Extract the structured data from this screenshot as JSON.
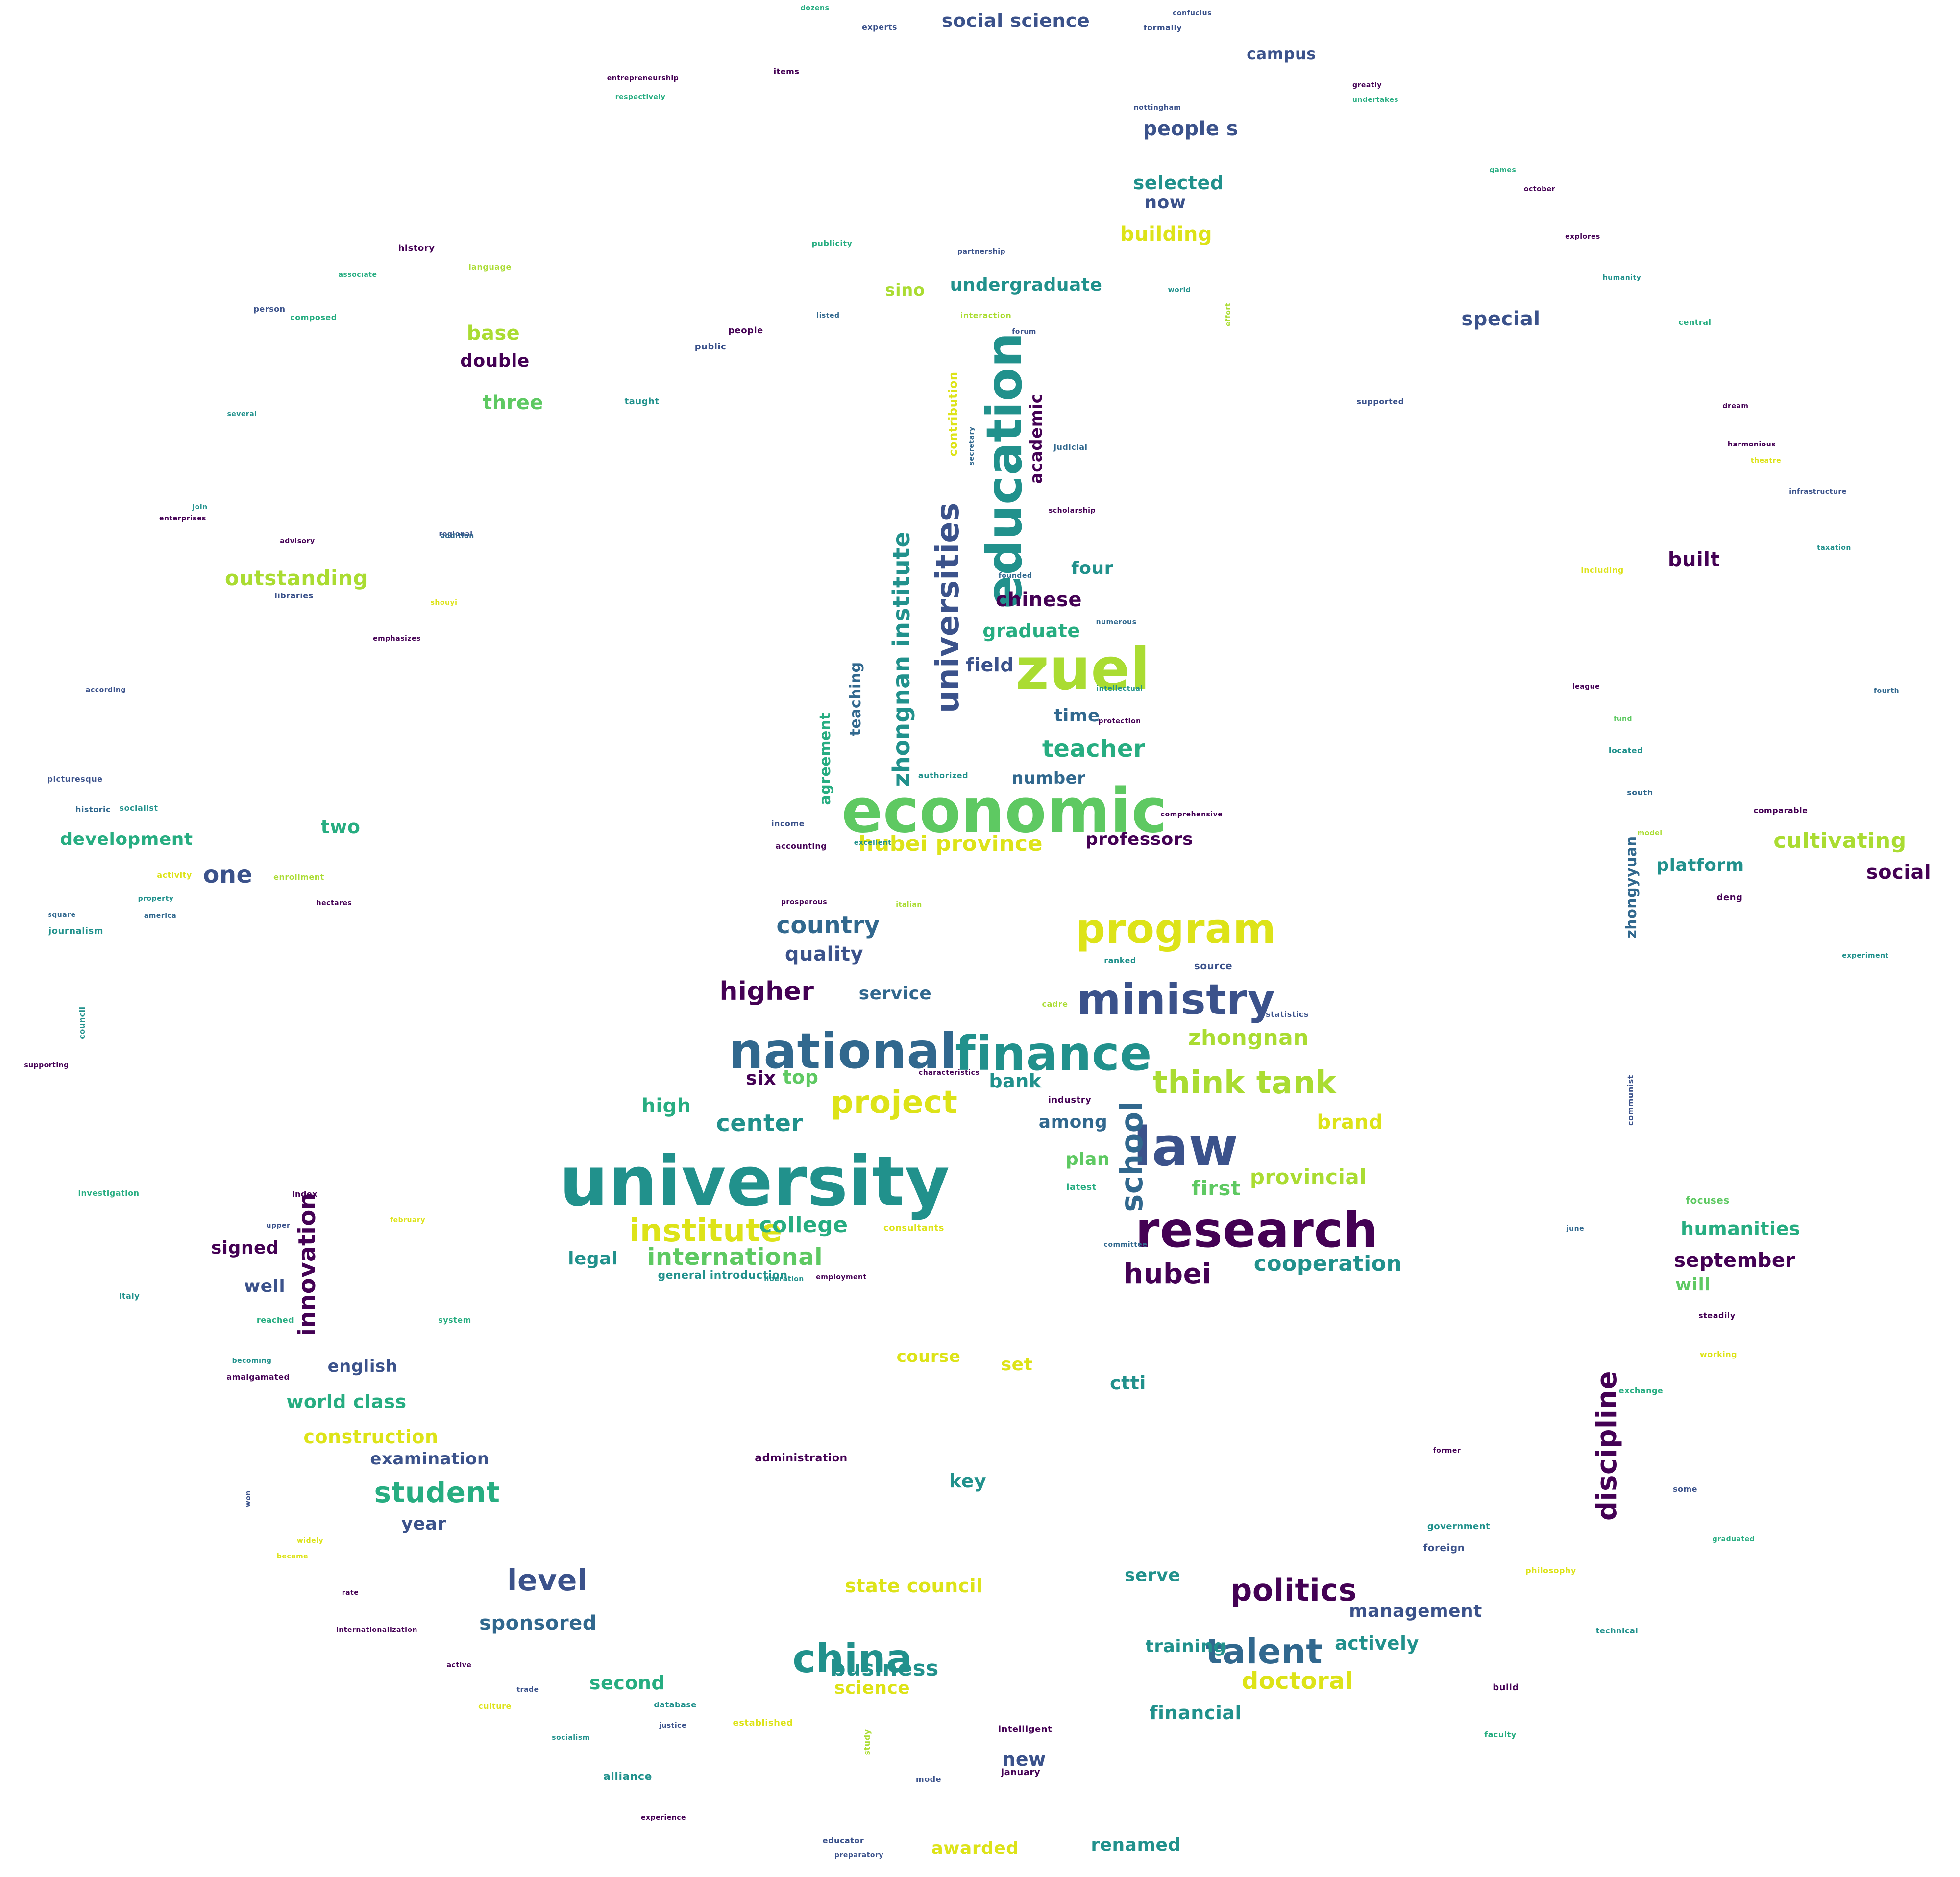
{
  "palette": {
    "c0": "#440154",
    "c1": "#3b528b",
    "c2": "#21918c",
    "c3": "#27ad81",
    "c4": "#5ec962",
    "c5": "#aadc32",
    "c6": "#dde318",
    "c7": "#31688e"
  },
  "words": [
    {
      "t": "university",
      "c": "c2"
    },
    {
      "t": "economic",
      "c": "c4"
    },
    {
      "t": "national",
      "c": "c7"
    },
    {
      "t": "finance",
      "c": "c2"
    },
    {
      "t": "research",
      "c": "c0"
    },
    {
      "t": "law",
      "c": "c1"
    },
    {
      "t": "program",
      "c": "c6"
    },
    {
      "t": "ministry",
      "c": "c1"
    },
    {
      "t": "zuel",
      "c": "c5"
    },
    {
      "t": "education",
      "c": "c2"
    },
    {
      "t": "china",
      "c": "c2"
    },
    {
      "t": "institute",
      "c": "c6"
    },
    {
      "t": "think tank",
      "c": "c5"
    },
    {
      "t": "project",
      "c": "c6"
    },
    {
      "t": "talent",
      "c": "c7"
    },
    {
      "t": "politics",
      "c": "c0"
    },
    {
      "t": "student",
      "c": "c3"
    },
    {
      "t": "zhongnan institute",
      "c": "c2"
    },
    {
      "t": "universities",
      "c": "c1"
    },
    {
      "t": "hubei province",
      "c": "c6"
    },
    {
      "t": "discipline",
      "c": "c0"
    },
    {
      "t": "innovation",
      "c": "c0"
    },
    {
      "t": "international",
      "c": "c4"
    },
    {
      "t": "hubei",
      "c": "c0"
    },
    {
      "t": "school",
      "c": "c7"
    },
    {
      "t": "college",
      "c": "c3"
    },
    {
      "t": "center",
      "c": "c2"
    },
    {
      "t": "cooperation",
      "c": "c2"
    },
    {
      "t": "higher",
      "c": "c0"
    },
    {
      "t": "country",
      "c": "c7"
    },
    {
      "t": "level",
      "c": "c1"
    },
    {
      "t": "doctoral",
      "c": "c6"
    },
    {
      "t": "business",
      "c": "c2"
    },
    {
      "t": "zhongnan",
      "c": "c5"
    },
    {
      "t": "teacher",
      "c": "c3"
    },
    {
      "t": "academic",
      "c": "c0"
    },
    {
      "t": "cultivating",
      "c": "c5"
    },
    {
      "t": "state council",
      "c": "c6"
    },
    {
      "t": "science",
      "c": "c6"
    },
    {
      "t": "sponsored",
      "c": "c7"
    },
    {
      "t": "provincial",
      "c": "c5"
    },
    {
      "t": "social science",
      "c": "c1"
    },
    {
      "t": "management",
      "c": "c1"
    },
    {
      "t": "undergraduate",
      "c": "c2"
    },
    {
      "t": "building",
      "c": "c6"
    },
    {
      "t": "development",
      "c": "c3"
    },
    {
      "t": "outstanding",
      "c": "c5"
    },
    {
      "t": "graduate",
      "c": "c3"
    },
    {
      "t": "people s",
      "c": "c1"
    },
    {
      "t": "quality",
      "c": "c1"
    },
    {
      "t": "service",
      "c": "c7"
    },
    {
      "t": "high",
      "c": "c3"
    },
    {
      "t": "brand",
      "c": "c6"
    },
    {
      "t": "among",
      "c": "c7"
    },
    {
      "t": "first",
      "c": "c4"
    },
    {
      "t": "humanities",
      "c": "c3"
    },
    {
      "t": "september",
      "c": "c0"
    },
    {
      "t": "platform",
      "c": "c2"
    },
    {
      "t": "social",
      "c": "c0"
    },
    {
      "t": "selected",
      "c": "c2"
    },
    {
      "t": "chinese",
      "c": "c0"
    },
    {
      "t": "construction",
      "c": "c6"
    },
    {
      "t": "examination",
      "c": "c1"
    },
    {
      "t": "world class",
      "c": "c3"
    },
    {
      "t": "financial",
      "c": "c2"
    },
    {
      "t": "training",
      "c": "c2"
    },
    {
      "t": "actively",
      "c": "c2"
    },
    {
      "t": "second",
      "c": "c3"
    },
    {
      "t": "special",
      "c": "c1"
    },
    {
      "t": "base",
      "c": "c5"
    },
    {
      "t": "double",
      "c": "c0"
    },
    {
      "t": "three",
      "c": "c4"
    },
    {
      "t": "one",
      "c": "c1"
    },
    {
      "t": "two",
      "c": "c3"
    },
    {
      "t": "professors",
      "c": "c0"
    },
    {
      "t": "number",
      "c": "c7"
    },
    {
      "t": "field",
      "c": "c1"
    },
    {
      "t": "time",
      "c": "c7"
    },
    {
      "t": "four",
      "c": "c2"
    },
    {
      "t": "top",
      "c": "c4"
    },
    {
      "t": "six",
      "c": "c0"
    },
    {
      "t": "bank",
      "c": "c2"
    },
    {
      "t": "plan",
      "c": "c4"
    },
    {
      "t": "legal",
      "c": "c2"
    },
    {
      "t": "signed",
      "c": "c0"
    },
    {
      "t": "well",
      "c": "c1"
    },
    {
      "t": "english",
      "c": "c1"
    },
    {
      "t": "year",
      "c": "c1"
    },
    {
      "t": "course",
      "c": "c6"
    },
    {
      "t": "set",
      "c": "c6"
    },
    {
      "t": "ctti",
      "c": "c2"
    },
    {
      "t": "key",
      "c": "c2"
    },
    {
      "t": "serve",
      "c": "c2"
    },
    {
      "t": "new",
      "c": "c1"
    },
    {
      "t": "awarded",
      "c": "c6"
    },
    {
      "t": "renamed",
      "c": "c2"
    },
    {
      "t": "campus",
      "c": "c1"
    },
    {
      "t": "now",
      "c": "c1"
    },
    {
      "t": "sino",
      "c": "c5"
    },
    {
      "t": "built",
      "c": "c0"
    },
    {
      "t": "will",
      "c": "c4"
    },
    {
      "t": "contribution",
      "c": "c6"
    },
    {
      "t": "teaching",
      "c": "c7"
    },
    {
      "t": "agreement",
      "c": "c3"
    },
    {
      "t": "zhongyyuan",
      "c": "c7"
    },
    {
      "t": "general introduction",
      "c": "c2"
    },
    {
      "t": "alliance",
      "c": "c2"
    },
    {
      "t": "administration",
      "c": "c0"
    },
    {
      "t": "journalism",
      "c": "c2"
    },
    {
      "t": "history",
      "c": "c0"
    },
    {
      "t": "person",
      "c": "c1"
    },
    {
      "t": "language",
      "c": "c5"
    },
    {
      "t": "items",
      "c": "c0"
    },
    {
      "t": "experts",
      "c": "c1"
    },
    {
      "t": "formally",
      "c": "c1"
    },
    {
      "t": "dozens",
      "c": "c3"
    },
    {
      "t": "confucius",
      "c": "c1"
    },
    {
      "t": "nottingham",
      "c": "c1"
    },
    {
      "t": "greatly",
      "c": "c0"
    },
    {
      "t": "undertakes",
      "c": "c3"
    },
    {
      "t": "entrepreneurship",
      "c": "c0"
    },
    {
      "t": "respectively",
      "c": "c3"
    },
    {
      "t": "october",
      "c": "c0"
    },
    {
      "t": "games",
      "c": "c3"
    },
    {
      "t": "explores",
      "c": "c0"
    },
    {
      "t": "humanity",
      "c": "c2"
    },
    {
      "t": "central",
      "c": "c3"
    },
    {
      "t": "supported",
      "c": "c1"
    },
    {
      "t": "dream",
      "c": "c0"
    },
    {
      "t": "harmonious",
      "c": "c0"
    },
    {
      "t": "theatre",
      "c": "c6"
    },
    {
      "t": "infrastructure",
      "c": "c1"
    },
    {
      "t": "taxation",
      "c": "c2"
    },
    {
      "t": "including",
      "c": "c6"
    },
    {
      "t": "fourth",
      "c": "c7"
    },
    {
      "t": "league",
      "c": "c0"
    },
    {
      "t": "fund",
      "c": "c4"
    },
    {
      "t": "located",
      "c": "c2"
    },
    {
      "t": "south",
      "c": "c7"
    },
    {
      "t": "comparable",
      "c": "c0"
    },
    {
      "t": "model",
      "c": "c5"
    },
    {
      "t": "deng",
      "c": "c0"
    },
    {
      "t": "experiment",
      "c": "c2"
    },
    {
      "t": "communist",
      "c": "c1"
    },
    {
      "t": "focuses",
      "c": "c4"
    },
    {
      "t": "june",
      "c": "c7"
    },
    {
      "t": "steadily",
      "c": "c0"
    },
    {
      "t": "working",
      "c": "c6"
    },
    {
      "t": "exchange",
      "c": "c3"
    },
    {
      "t": "former",
      "c": "c0"
    },
    {
      "t": "some",
      "c": "c1"
    },
    {
      "t": "graduated",
      "c": "c3"
    },
    {
      "t": "government",
      "c": "c2"
    },
    {
      "t": "foreign",
      "c": "c1"
    },
    {
      "t": "philosophy",
      "c": "c6"
    },
    {
      "t": "technical",
      "c": "c2"
    },
    {
      "t": "build",
      "c": "c0"
    },
    {
      "t": "faculty",
      "c": "c3"
    },
    {
      "t": "intelligent",
      "c": "c0"
    },
    {
      "t": "january",
      "c": "c0"
    },
    {
      "t": "mode",
      "c": "c1"
    },
    {
      "t": "study",
      "c": "c5"
    },
    {
      "t": "established",
      "c": "c6"
    },
    {
      "t": "database",
      "c": "c2"
    },
    {
      "t": "justice",
      "c": "c1"
    },
    {
      "t": "experience",
      "c": "c0"
    },
    {
      "t": "preparatory",
      "c": "c1"
    },
    {
      "t": "educator",
      "c": "c1"
    },
    {
      "t": "socialism",
      "c": "c2"
    },
    {
      "t": "culture",
      "c": "c6"
    },
    {
      "t": "trade",
      "c": "c1"
    },
    {
      "t": "active",
      "c": "c0"
    },
    {
      "t": "internationalization",
      "c": "c0"
    },
    {
      "t": "rate",
      "c": "c0"
    },
    {
      "t": "became",
      "c": "c6"
    },
    {
      "t": "widely",
      "c": "c6"
    },
    {
      "t": "won",
      "c": "c1"
    },
    {
      "t": "amalgamated",
      "c": "c0"
    },
    {
      "t": "becoming",
      "c": "c2"
    },
    {
      "t": "reached",
      "c": "c3"
    },
    {
      "t": "italy",
      "c": "c2"
    },
    {
      "t": "investigation",
      "c": "c3"
    },
    {
      "t": "index",
      "c": "c0"
    },
    {
      "t": "upper",
      "c": "c1"
    },
    {
      "t": "february",
      "c": "c6"
    },
    {
      "t": "system",
      "c": "c3"
    },
    {
      "t": "supporting",
      "c": "c0"
    },
    {
      "t": "council",
      "c": "c2"
    },
    {
      "t": "according",
      "c": "c1"
    },
    {
      "t": "picturesque",
      "c": "c1"
    },
    {
      "t": "historic",
      "c": "c7"
    },
    {
      "t": "socialist",
      "c": "c2"
    },
    {
      "t": "activity",
      "c": "c6"
    },
    {
      "t": "enrollment",
      "c": "c5"
    },
    {
      "t": "hectares",
      "c": "c0"
    },
    {
      "t": "america",
      "c": "c7"
    },
    {
      "t": "property",
      "c": "c2"
    },
    {
      "t": "square",
      "c": "c7"
    },
    {
      "t": "libraries",
      "c": "c1"
    },
    {
      "t": "emphasizes",
      "c": "c0"
    },
    {
      "t": "shouyi",
      "c": "c6"
    },
    {
      "t": "regional",
      "c": "c1"
    },
    {
      "t": "advisory",
      "c": "c0"
    },
    {
      "t": "addition",
      "c": "c7"
    },
    {
      "t": "enterprises",
      "c": "c0"
    },
    {
      "t": "join",
      "c": "c2"
    },
    {
      "t": "several",
      "c": "c2"
    },
    {
      "t": "composed",
      "c": "c3"
    },
    {
      "t": "associate",
      "c": "c3"
    },
    {
      "t": "taught",
      "c": "c2"
    },
    {
      "t": "people",
      "c": "c0"
    },
    {
      "t": "public",
      "c": "c1"
    },
    {
      "t": "listed",
      "c": "c7"
    },
    {
      "t": "publicity",
      "c": "c3"
    },
    {
      "t": "partnership",
      "c": "c1"
    },
    {
      "t": "world",
      "c": "c2"
    },
    {
      "t": "effort",
      "c": "c5"
    },
    {
      "t": "interaction",
      "c": "c5"
    },
    {
      "t": "forum",
      "c": "c1"
    },
    {
      "t": "secretary",
      "c": "c7"
    },
    {
      "t": "judicial",
      "c": "c7"
    },
    {
      "t": "scholarship",
      "c": "c0"
    },
    {
      "t": "founded",
      "c": "c7"
    },
    {
      "t": "numerous",
      "c": "c7"
    },
    {
      "t": "intellectual",
      "c": "c2"
    },
    {
      "t": "protection",
      "c": "c0"
    },
    {
      "t": "authorized",
      "c": "c2"
    },
    {
      "t": "comprehensive",
      "c": "c0"
    },
    {
      "t": "income",
      "c": "c1"
    },
    {
      "t": "accounting",
      "c": "c0"
    },
    {
      "t": "excellent",
      "c": "c2"
    },
    {
      "t": "prosperous",
      "c": "c0"
    },
    {
      "t": "italian",
      "c": "c5"
    },
    {
      "t": "source",
      "c": "c1"
    },
    {
      "t": "ranked",
      "c": "c2"
    },
    {
      "t": "cadre",
      "c": "c5"
    },
    {
      "t": "statistics",
      "c": "c1"
    },
    {
      "t": "characteristics",
      "c": "c0"
    },
    {
      "t": "industry",
      "c": "c0"
    },
    {
      "t": "latest",
      "c": "c3"
    },
    {
      "t": "consultants",
      "c": "c6"
    },
    {
      "t": "employment",
      "c": "c0"
    },
    {
      "t": "committee",
      "c": "c7"
    },
    {
      "t": "liberation",
      "c": "c2"
    },
    {
      "t": "branch",
      "c": "c7"
    },
    {
      "t": "culturally",
      "c": "c0"
    },
    {
      "t": "legal affairs",
      "c": "c2"
    }
  ]
}
